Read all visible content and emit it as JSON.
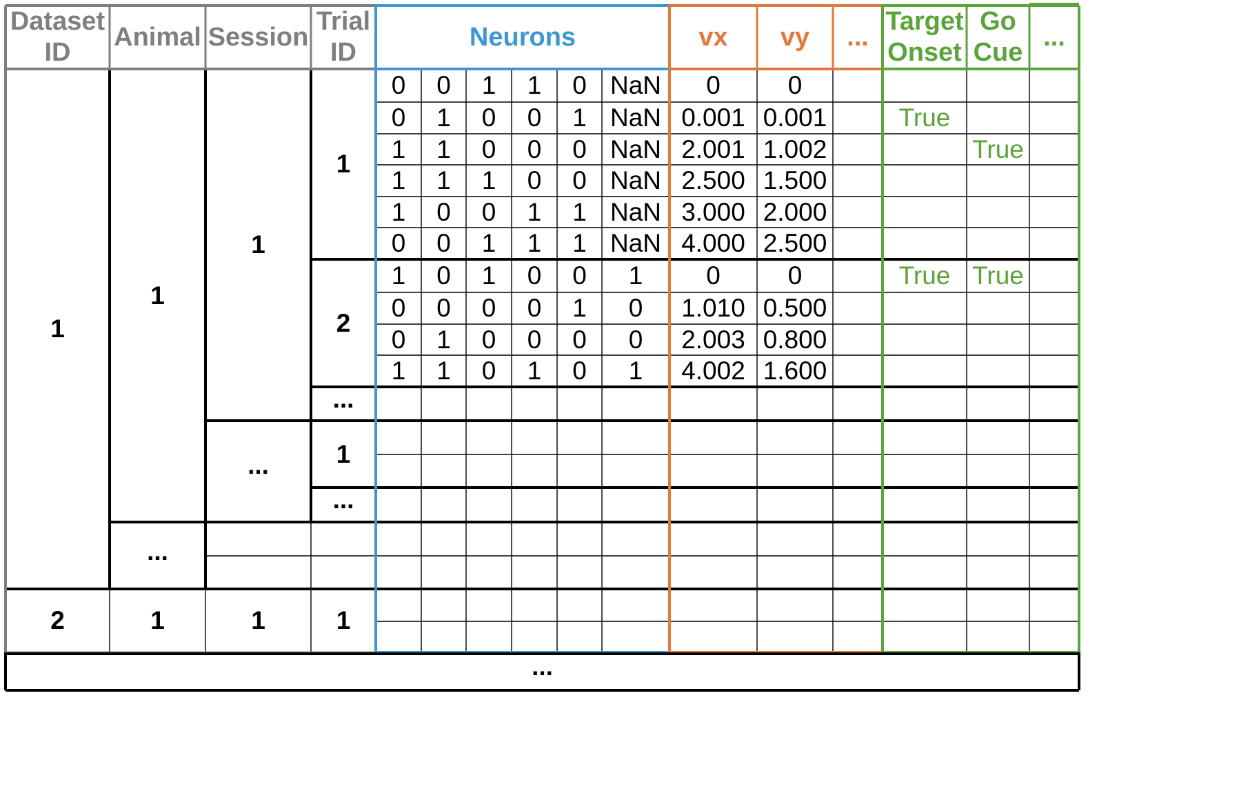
{
  "headers": {
    "dataset_id": "Dataset\nID",
    "animal": "Animal",
    "session": "Session",
    "trial_id": "Trial\nID",
    "neurons": "Neurons",
    "vx": "vx",
    "vy": "vy",
    "behavior_more": "...",
    "target_onset": "Target\nOnset",
    "go_cue": "Go\nCue",
    "events_more": "..."
  },
  "hierarchy": {
    "dataset_1": "1",
    "dataset_2": "2",
    "animal_1": "1",
    "animal_more": "...",
    "animal_d2": "1",
    "session_1": "1",
    "session_more": "...",
    "session_d2": "1",
    "trial_1": "1",
    "trial_2": "2",
    "trial_more_a": "...",
    "trial_s2_1": "1",
    "trial_s2_more": "...",
    "trial_d2": "1",
    "rows_more": "..."
  },
  "trial1_rows": [
    {
      "neurons": [
        "0",
        "0",
        "1",
        "1",
        "0",
        "NaN"
      ],
      "vx": "0",
      "vy": "0",
      "target_onset": "",
      "go_cue": ""
    },
    {
      "neurons": [
        "0",
        "1",
        "0",
        "0",
        "1",
        "NaN"
      ],
      "vx": "0.001",
      "vy": "0.001",
      "target_onset": "True",
      "go_cue": ""
    },
    {
      "neurons": [
        "1",
        "1",
        "0",
        "0",
        "0",
        "NaN"
      ],
      "vx": "2.001",
      "vy": "1.002",
      "target_onset": "",
      "go_cue": "True"
    },
    {
      "neurons": [
        "1",
        "1",
        "1",
        "0",
        "0",
        "NaN"
      ],
      "vx": "2.500",
      "vy": "1.500",
      "target_onset": "",
      "go_cue": ""
    },
    {
      "neurons": [
        "1",
        "0",
        "0",
        "1",
        "1",
        "NaN"
      ],
      "vx": "3.000",
      "vy": "2.000",
      "target_onset": "",
      "go_cue": ""
    },
    {
      "neurons": [
        "0",
        "0",
        "1",
        "1",
        "1",
        "NaN"
      ],
      "vx": "4.000",
      "vy": "2.500",
      "target_onset": "",
      "go_cue": ""
    }
  ],
  "trial2_rows": [
    {
      "neurons": [
        "1",
        "0",
        "1",
        "0",
        "0",
        "1"
      ],
      "vx": "0",
      "vy": "0",
      "target_onset": "True",
      "go_cue": "True"
    },
    {
      "neurons": [
        "0",
        "0",
        "0",
        "0",
        "1",
        "0"
      ],
      "vx": "1.010",
      "vy": "0.500",
      "target_onset": "",
      "go_cue": ""
    },
    {
      "neurons": [
        "0",
        "1",
        "0",
        "0",
        "0",
        "0"
      ],
      "vx": "2.003",
      "vy": "0.800",
      "target_onset": "",
      "go_cue": ""
    },
    {
      "neurons": [
        "1",
        "1",
        "0",
        "1",
        "0",
        "1"
      ],
      "vx": "4.002",
      "vy": "1.600",
      "target_onset": "",
      "go_cue": ""
    }
  ],
  "colors": {
    "gray": "#7f7f7f",
    "neurons_blue": "#3d97d0",
    "behavior_orange": "#e07a3c",
    "events_green": "#5aa43a",
    "black": "#000000"
  }
}
